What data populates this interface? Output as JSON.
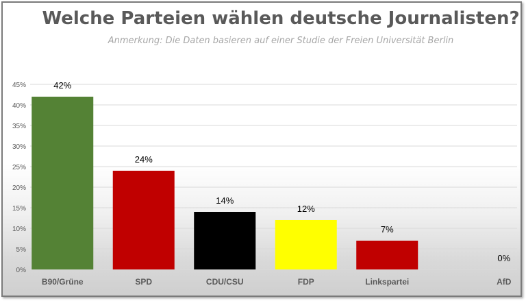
{
  "chart_data": {
    "type": "bar",
    "title": "Welche Parteien wählen deutsche Journalisten?",
    "subtitle": "Anmerkung: Die Daten basieren auf einer Studie der Freien Universität Berlin",
    "categories": [
      "B90/Grüne",
      "SPD",
      "CDU/CSU",
      "FDP",
      "Linkspartei",
      "AfD"
    ],
    "values": [
      42,
      24,
      14,
      12,
      7,
      0
    ],
    "data_labels": [
      "42%",
      "24%",
      "14%",
      "12%",
      "7%",
      "0%"
    ],
    "colors": [
      "#548235",
      "#c00000",
      "#000000",
      "#ffff00",
      "#c00000",
      "#7f7f7f"
    ],
    "yticks": [
      "0%",
      "5%",
      "10%",
      "15%",
      "20%",
      "25%",
      "30%",
      "35%",
      "40%",
      "45%"
    ],
    "ylim": [
      0,
      45
    ],
    "grid": true,
    "legend": "none"
  }
}
